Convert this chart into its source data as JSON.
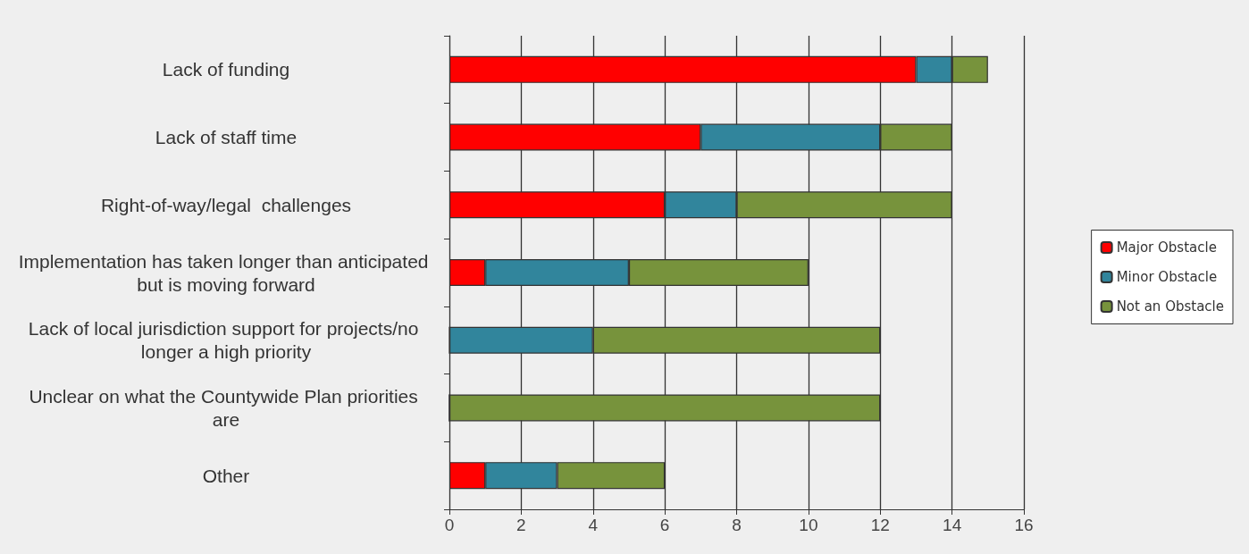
{
  "chart_data": {
    "type": "bar",
    "orientation": "horizontal",
    "stacked": true,
    "categories": [
      "Lack of funding",
      "Lack of staff time",
      "Right-of-way/legal  challenges",
      "Implementation has taken longer than anticipated but is moving forward",
      "Lack of local jurisdiction support for projects/no longer a high priority",
      "Unclear on what the Countywide Plan priorities are",
      "Other"
    ],
    "series": [
      {
        "name": "Major Obstacle",
        "color": "#ff0000",
        "values": [
          13,
          7,
          6,
          1,
          0,
          0,
          1
        ]
      },
      {
        "name": "Minor Obstacle",
        "color": "#31859c",
        "values": [
          1,
          5,
          2,
          4,
          4,
          0,
          2
        ]
      },
      {
        "name": "Not an Obstacle",
        "color": "#77933c",
        "values": [
          1,
          2,
          6,
          5,
          8,
          12,
          3
        ]
      }
    ],
    "xlim": [
      0,
      16
    ],
    "xticks": [
      0,
      2,
      4,
      6,
      8,
      10,
      12,
      14,
      16
    ],
    "grid": "x",
    "legend": "right"
  }
}
